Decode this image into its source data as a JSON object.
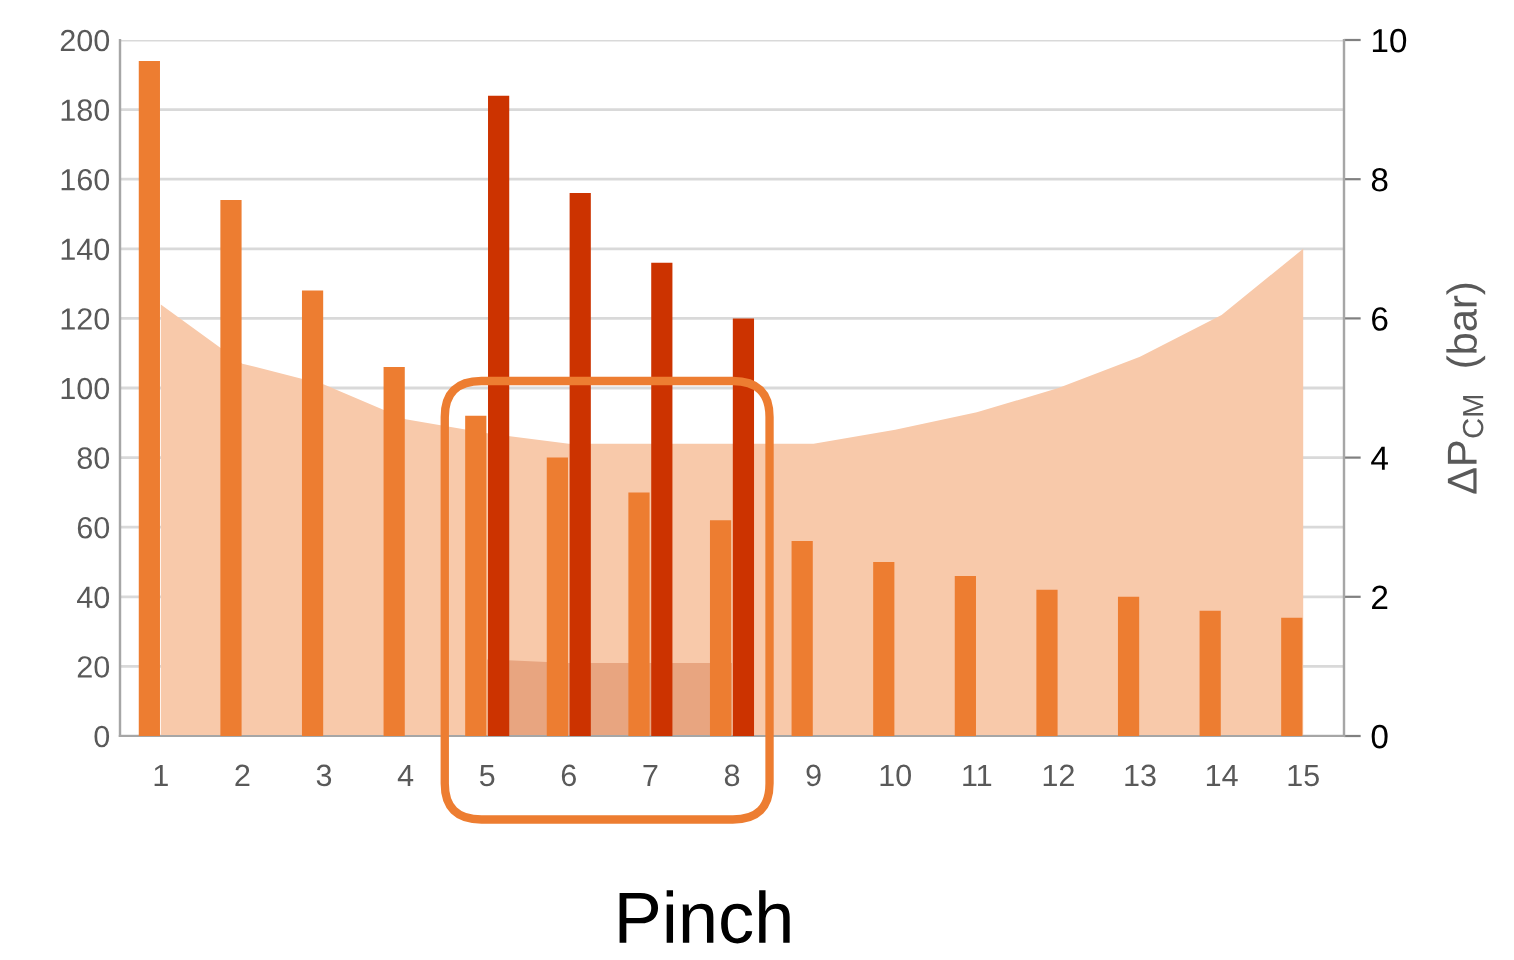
{
  "chart_data": {
    "type": "bar",
    "categories": [
      "1",
      "2",
      "3",
      "4",
      "5",
      "6",
      "7",
      "8",
      "9",
      "10",
      "11",
      "12",
      "13",
      "14",
      "15"
    ],
    "series": [
      {
        "type": "area",
        "axis": "y2",
        "color": "#f8c9aa",
        "values": [
          6.2,
          5.35,
          5.05,
          4.55,
          4.35,
          4.2,
          4.2,
          4.2,
          4.2,
          4.4,
          4.65,
          5.0,
          5.45,
          6.05,
          7.0
        ]
      },
      {
        "type": "area",
        "color": "#e8a580",
        "values": [
          null,
          null,
          null,
          null,
          22,
          21,
          21,
          21,
          null,
          null,
          null,
          null,
          null,
          null,
          null
        ]
      },
      {
        "color": "#ed7d31",
        "values": [
          194,
          154,
          128,
          106,
          92,
          80,
          70,
          62,
          56,
          50,
          46,
          42,
          40,
          36,
          34
        ]
      },
      {
        "color": "#cc3300",
        "values": [
          null,
          null,
          null,
          null,
          184,
          156,
          136,
          120,
          null,
          null,
          null,
          null,
          null,
          null,
          null
        ]
      }
    ],
    "ylim": [
      0,
      200
    ],
    "yticks": [
      0,
      20,
      40,
      60,
      80,
      100,
      120,
      140,
      160,
      180,
      200
    ],
    "y2lim": [
      0,
      10
    ],
    "y2ticks": [
      0,
      2,
      4,
      6,
      8,
      10
    ],
    "y2label": "ΔP$_{CM}$  (bar)",
    "grid": "y",
    "legend": false,
    "annotations": [
      "Pinch"
    ]
  }
}
